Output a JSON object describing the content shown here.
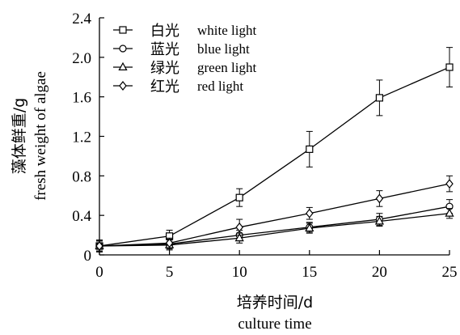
{
  "chart_data": {
    "type": "line",
    "title": "",
    "xlabel_cn": "培养时间/d",
    "xlabel_en": "culture time",
    "ylabel_cn": "藻体鲜重/g",
    "ylabel_en": "fresh weight of algae",
    "x": [
      0,
      5,
      10,
      15,
      20,
      25
    ],
    "xlim": [
      0,
      25
    ],
    "ylim": [
      0,
      2.4
    ],
    "xticks": [
      "0",
      "5",
      "10",
      "15",
      "20",
      "25"
    ],
    "yticks": [
      "0",
      "0.4",
      "0.8",
      "1.2",
      "1.6",
      "2.0",
      "2.4"
    ],
    "xtick_values": [
      0,
      5,
      10,
      15,
      20,
      25
    ],
    "ytick_values": [
      0,
      0.4,
      0.8,
      1.2,
      1.6,
      2.0,
      2.4
    ],
    "grid": false,
    "legend_position": "top-left",
    "series": [
      {
        "name_cn": "白光",
        "name_en": "white light",
        "marker": "square",
        "values": [
          0.09,
          0.19,
          0.58,
          1.07,
          1.59,
          1.9
        ],
        "errors": [
          0.06,
          0.06,
          0.09,
          0.18,
          0.18,
          0.2
        ]
      },
      {
        "name_cn": "蓝光",
        "name_en": "blue light",
        "marker": "circle",
        "values": [
          0.09,
          0.11,
          0.2,
          0.28,
          0.36,
          0.49
        ],
        "errors": [
          0.05,
          0.05,
          0.05,
          0.05,
          0.06,
          0.07
        ]
      },
      {
        "name_cn": "绿光",
        "name_en": "green light",
        "marker": "triangle",
        "values": [
          0.09,
          0.1,
          0.17,
          0.27,
          0.34,
          0.42
        ],
        "errors": [
          0.05,
          0.05,
          0.05,
          0.05,
          0.05,
          0.05
        ]
      },
      {
        "name_cn": "红光",
        "name_en": "red light",
        "marker": "diamond",
        "values": [
          0.09,
          0.12,
          0.28,
          0.42,
          0.57,
          0.72
        ],
        "errors": [
          0.06,
          0.05,
          0.08,
          0.06,
          0.08,
          0.08
        ]
      }
    ]
  }
}
